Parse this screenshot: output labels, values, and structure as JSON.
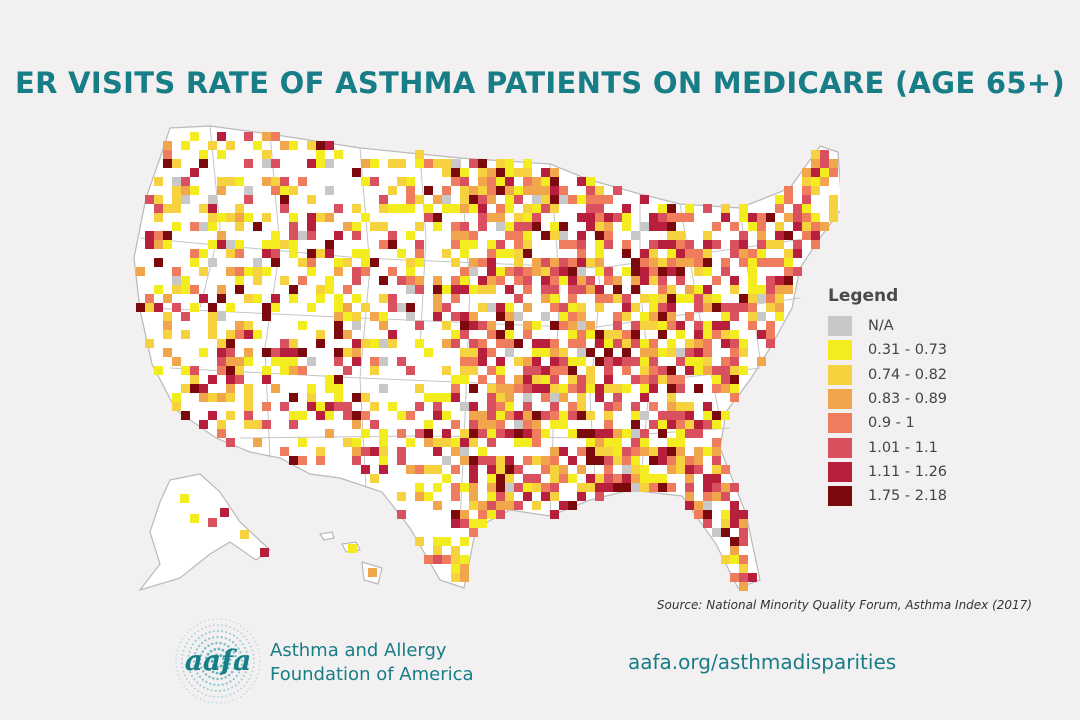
{
  "title": "ER VISITS RATE OF ASTHMA PATIENTS ON MEDICARE (AGE 65+)",
  "legend": {
    "title": "Legend",
    "items": [
      {
        "label": "N/A",
        "color": "#c8c8c8"
      },
      {
        "label": "0.31 - 0.73",
        "color": "#f3ec1f"
      },
      {
        "label": "0.74 - 0.82",
        "color": "#f6d23e"
      },
      {
        "label": "0.83 - 0.89",
        "color": "#f2a64c"
      },
      {
        "label": "0.9 - 1",
        "color": "#ef7c5c"
      },
      {
        "label": "1.01 - 1.1",
        "color": "#d9505f"
      },
      {
        "label": "1.11 - 1.26",
        "color": "#b71f3d"
      },
      {
        "label": "1.75 - 2.18",
        "color": "#7c0a0c"
      }
    ]
  },
  "source": "Source: National Minority Quality Forum, Asthma Index (2017)",
  "organization": {
    "logo_text": "aafa",
    "name_line1": "Asthma and Allergy",
    "name_line2": "Foundation of America"
  },
  "url": "aafa.org/asthmadisparities"
}
